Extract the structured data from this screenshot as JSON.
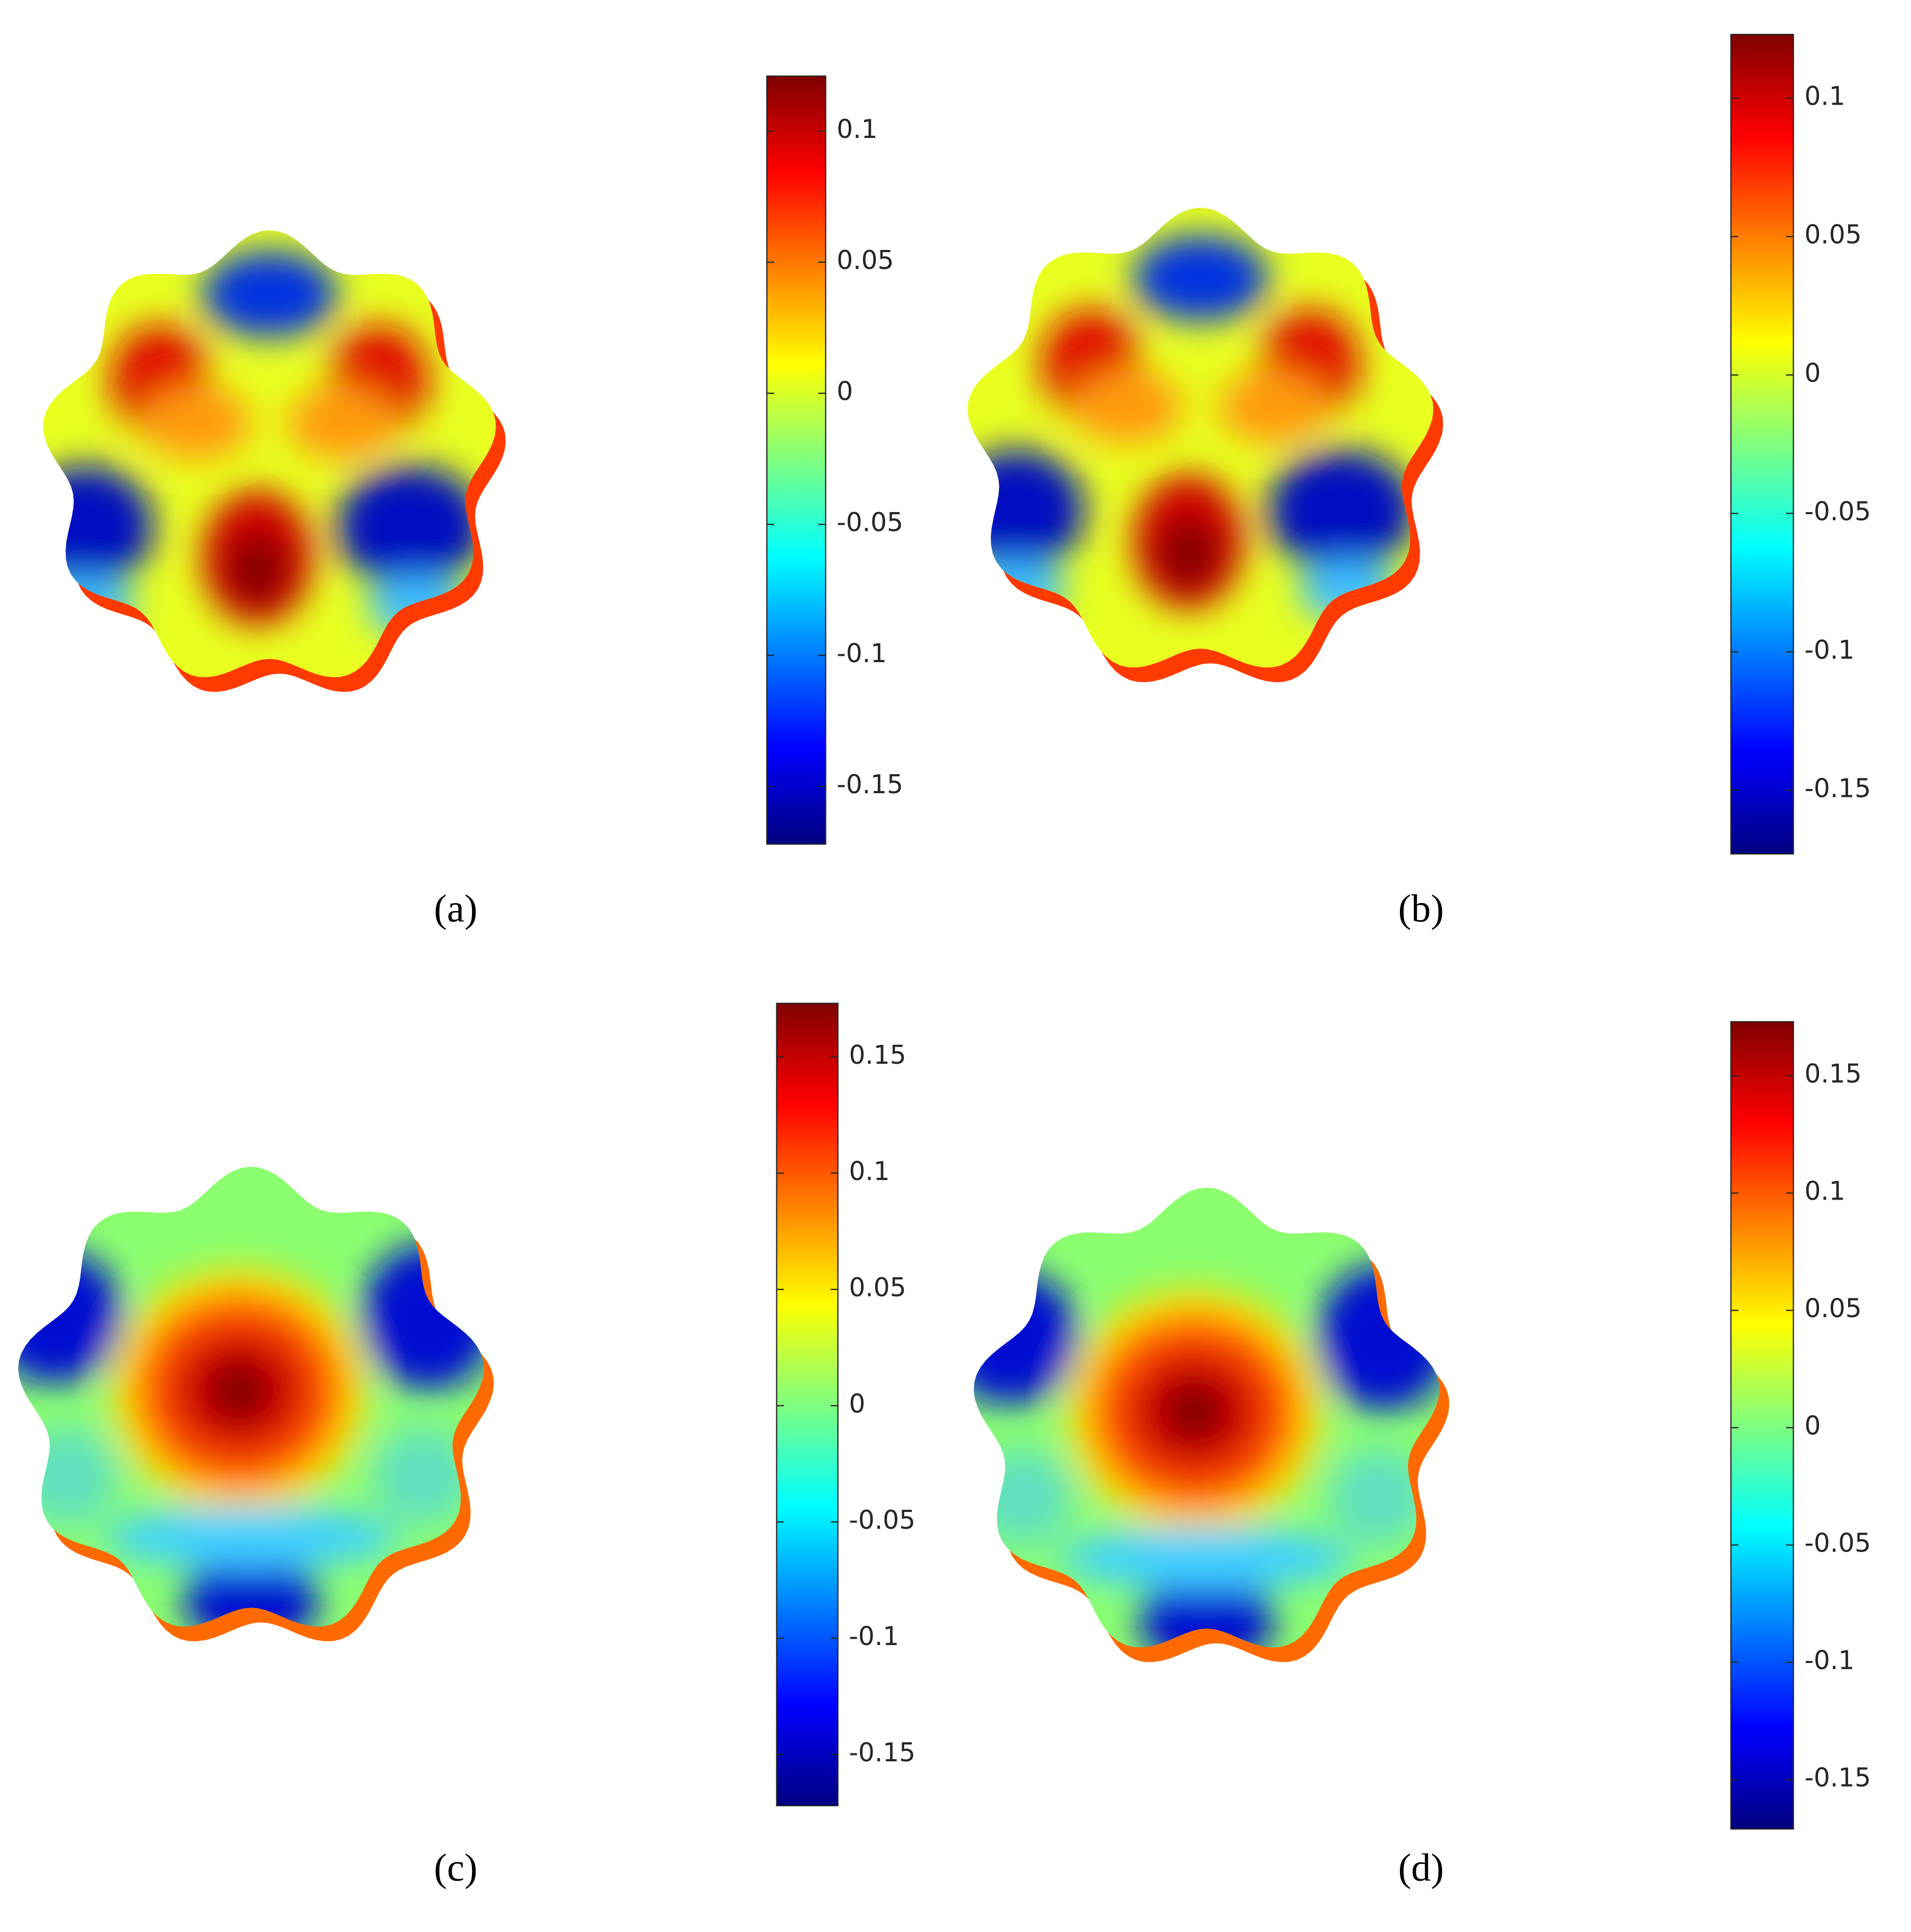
{
  "chart_data": [
    {
      "type": "colorbar",
      "label": "(a)",
      "colormap": "jet",
      "ylim": [
        -0.172,
        0.121
      ],
      "yticks": [
        -0.15,
        -0.1,
        -0.05,
        0,
        0.05,
        0.1
      ]
    },
    {
      "type": "colorbar",
      "label": "(b)",
      "colormap": "jet",
      "ylim": [
        -0.173,
        0.123
      ],
      "yticks": [
        -0.15,
        -0.1,
        -0.05,
        0,
        0.05,
        0.1
      ]
    },
    {
      "type": "colorbar",
      "label": "(c)",
      "colormap": "jet",
      "ylim": [
        -0.172,
        0.173
      ],
      "yticks": [
        -0.15,
        -0.1,
        -0.05,
        0,
        0.05,
        0.1,
        0.15
      ]
    },
    {
      "type": "colorbar",
      "label": "(d)",
      "colormap": "jet",
      "ylim": [
        -0.171,
        0.173
      ],
      "yticks": [
        -0.15,
        -0.1,
        -0.05,
        0,
        0.05,
        0.1,
        0.15
      ]
    }
  ]
}
